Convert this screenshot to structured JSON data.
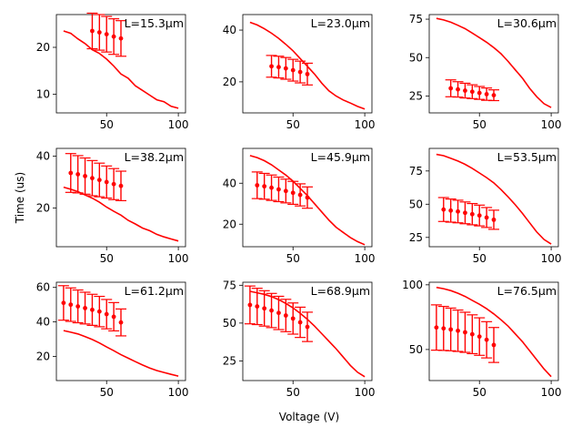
{
  "chart_data": {
    "type": "line",
    "layout": "3x3 grid of subplots",
    "xlabel": "Voltage (V)",
    "ylabel": "Time (us)",
    "line_color": "#ff0000",
    "panels": [
      {
        "label": "L=15.3μm",
        "xlim": [
          15,
          105
        ],
        "ylim": [
          6,
          27
        ],
        "xticks": [
          50,
          100
        ],
        "yticks": [
          10,
          20
        ],
        "curve": {
          "x": [
            20,
            25,
            30,
            35,
            40,
            45,
            50,
            55,
            60,
            65,
            70,
            75,
            80,
            85,
            90,
            95,
            100
          ],
          "y": [
            23.5,
            23.0,
            21.8,
            20.8,
            19.5,
            18.7,
            17.5,
            16.0,
            14.3,
            13.4,
            11.8,
            10.8,
            9.8,
            8.8,
            8.4,
            7.4,
            7.0
          ]
        },
        "errorbars": {
          "x": [
            40,
            45,
            50,
            55,
            60
          ],
          "y": [
            23.5,
            23.2,
            22.8,
            22.3,
            21.9
          ],
          "err": [
            3.8,
            3.8,
            3.8,
            3.8,
            3.8
          ]
        }
      },
      {
        "label": "L=23.0μm",
        "xlim": [
          15,
          105
        ],
        "ylim": [
          8,
          46
        ],
        "xticks": [
          50,
          100
        ],
        "yticks": [
          20,
          40
        ],
        "curve": {
          "x": [
            20,
            25,
            30,
            35,
            40,
            45,
            50,
            55,
            60,
            65,
            70,
            75,
            80,
            85,
            90,
            95,
            100
          ],
          "y": [
            43,
            42,
            40.5,
            38.8,
            36.8,
            34.5,
            32,
            29,
            26,
            23,
            19.5,
            16.5,
            14.5,
            13,
            11.8,
            10.5,
            9.5
          ]
        },
        "errorbars": {
          "x": [
            35,
            40,
            45,
            50,
            55,
            60
          ],
          "y": [
            26.0,
            25.7,
            25.2,
            24.5,
            23.8,
            23.0
          ],
          "err": [
            4.2,
            4.2,
            4.2,
            4.2,
            4.2,
            4.2
          ]
        }
      },
      {
        "label": "L=30.6μm",
        "xlim": [
          15,
          105
        ],
        "ylim": [
          14,
          78
        ],
        "xticks": [
          50,
          100
        ],
        "yticks": [
          25,
          50,
          75
        ],
        "curve": {
          "x": [
            20,
            25,
            30,
            35,
            40,
            45,
            50,
            55,
            60,
            65,
            70,
            75,
            80,
            85,
            90,
            95,
            100
          ],
          "y": [
            75.5,
            74.5,
            73,
            71,
            68.8,
            66,
            63,
            60,
            56.5,
            52.5,
            47.5,
            42,
            36.5,
            30,
            24.5,
            20,
            17.5
          ]
        },
        "errorbars": {
          "x": [
            30,
            35,
            40,
            45,
            50,
            55,
            60
          ],
          "y": [
            30.0,
            29.3,
            28.5,
            27.8,
            27.0,
            26.2,
            25.5
          ],
          "err": [
            5.5,
            5.0,
            4.8,
            4.5,
            4.2,
            4.0,
            3.5
          ]
        }
      },
      {
        "label": "L=38.2μm",
        "xlim": [
          15,
          105
        ],
        "ylim": [
          5,
          43
        ],
        "xticks": [
          50,
          100
        ],
        "yticks": [
          20,
          40
        ],
        "curve": {
          "x": [
            20,
            25,
            30,
            35,
            40,
            45,
            50,
            55,
            60,
            65,
            70,
            75,
            80,
            85,
            90,
            95,
            100
          ],
          "y": [
            28,
            27.2,
            26.3,
            25,
            23.8,
            22.2,
            20.3,
            18.7,
            17.2,
            15.2,
            13.8,
            12.2,
            11.2,
            9.8,
            8.8,
            8.0,
            7.2
          ]
        },
        "errorbars": {
          "x": [
            25,
            30,
            35,
            40,
            45,
            50,
            55,
            60
          ],
          "y": [
            33.5,
            33.0,
            32.3,
            31.5,
            30.8,
            30.0,
            29.2,
            28.5
          ],
          "err": [
            7.5,
            7.2,
            7.0,
            6.8,
            6.5,
            6.2,
            6.0,
            5.7
          ]
        }
      },
      {
        "label": "L=45.9μm",
        "xlim": [
          15,
          105
        ],
        "ylim": [
          9,
          57
        ],
        "xticks": [
          50,
          100
        ],
        "yticks": [
          20,
          40
        ],
        "curve": {
          "x": [
            20,
            25,
            30,
            35,
            40,
            45,
            50,
            55,
            60,
            65,
            70,
            75,
            80,
            85,
            90,
            95,
            100
          ],
          "y": [
            53.5,
            52.5,
            51,
            49,
            46.5,
            44,
            41,
            37.5,
            34,
            30,
            26,
            22,
            18.5,
            16,
            13.5,
            11.5,
            10
          ]
        },
        "errorbars": {
          "x": [
            25,
            30,
            35,
            40,
            45,
            50,
            55,
            60
          ],
          "y": [
            39.0,
            38.5,
            37.8,
            37.0,
            36.2,
            35.3,
            34.3,
            33.0
          ],
          "err": [
            6.5,
            6.3,
            6.2,
            6.0,
            5.8,
            5.6,
            5.4,
            5.2
          ]
        }
      },
      {
        "label": "L=53.5μm",
        "xlim": [
          15,
          105
        ],
        "ylim": [
          18,
          92
        ],
        "xticks": [
          50,
          100
        ],
        "yticks": [
          25,
          50,
          75
        ],
        "curve": {
          "x": [
            20,
            25,
            30,
            35,
            40,
            45,
            50,
            55,
            60,
            65,
            70,
            75,
            80,
            85,
            90,
            95,
            100
          ],
          "y": [
            87.5,
            86.5,
            84.5,
            82.5,
            80,
            77,
            73.5,
            70,
            66,
            61,
            55.5,
            49.5,
            43,
            36,
            29,
            23.5,
            20
          ]
        },
        "errorbars": {
          "x": [
            25,
            30,
            35,
            40,
            45,
            50,
            55,
            60
          ],
          "y": [
            46.0,
            45.2,
            44.5,
            43.5,
            42.5,
            41.5,
            40.0,
            38.3
          ],
          "err": [
            9.0,
            8.7,
            8.5,
            8.2,
            8.0,
            7.8,
            7.5,
            7.2
          ]
        }
      },
      {
        "label": "L=61.2μm",
        "xlim": [
          15,
          105
        ],
        "ylim": [
          6,
          63
        ],
        "xticks": [
          50,
          100
        ],
        "yticks": [
          20,
          40,
          60
        ],
        "curve": {
          "x": [
            20,
            25,
            30,
            35,
            40,
            45,
            50,
            55,
            60,
            65,
            70,
            75,
            80,
            85,
            90,
            95,
            100
          ],
          "y": [
            35,
            34,
            33,
            31.5,
            29.8,
            27.8,
            25.5,
            23.3,
            21,
            19,
            17,
            15,
            13.3,
            11.8,
            10.7,
            9.6,
            8.6
          ]
        },
        "errorbars": {
          "x": [
            20,
            25,
            30,
            35,
            40,
            45,
            50,
            55,
            60
          ],
          "y": [
            51.0,
            50.0,
            49.0,
            48.0,
            47.0,
            46.0,
            44.5,
            43.0,
            39.7
          ],
          "err": [
            10.0,
            9.7,
            9.5,
            9.2,
            9.0,
            8.8,
            8.5,
            8.2,
            7.8
          ]
        }
      },
      {
        "label": "L=68.9μm",
        "xlim": [
          15,
          105
        ],
        "ylim": [
          12,
          77
        ],
        "xticks": [
          50,
          100
        ],
        "yticks": [
          25,
          50,
          75
        ],
        "curve": {
          "x": [
            20,
            25,
            30,
            35,
            40,
            45,
            50,
            55,
            60,
            65,
            70,
            75,
            80,
            85,
            90,
            95,
            100
          ],
          "y": [
            71,
            70,
            69,
            67.5,
            65.5,
            63,
            60,
            56.5,
            52.5,
            48,
            43,
            38,
            33,
            27.5,
            22,
            17.5,
            14.5
          ]
        },
        "errorbars": {
          "x": [
            20,
            25,
            30,
            35,
            40,
            45,
            50,
            55,
            60
          ],
          "y": [
            62.0,
            61.0,
            59.7,
            58.3,
            56.7,
            55.0,
            53.0,
            50.5,
            47.5
          ],
          "err": [
            12.5,
            12.0,
            11.7,
            11.3,
            11.0,
            10.7,
            10.3,
            10.0,
            9.7
          ]
        }
      },
      {
        "label": "L=76.5μm",
        "xlim": [
          15,
          105
        ],
        "ylim": [
          26,
          102
        ],
        "xticks": [
          50,
          100
        ],
        "yticks": [
          50,
          100
        ],
        "curve": {
          "x": [
            20,
            25,
            30,
            35,
            40,
            45,
            50,
            55,
            60,
            65,
            70,
            75,
            80,
            85,
            90,
            95,
            100
          ],
          "y": [
            98,
            97,
            95.5,
            93.5,
            91,
            88,
            85,
            81.5,
            77.5,
            73,
            68,
            62,
            56,
            49,
            42,
            35,
            29
          ]
        },
        "errorbars": {
          "x": [
            20,
            25,
            30,
            35,
            40,
            45,
            50,
            55,
            60
          ],
          "y": [
            67.0,
            66.3,
            65.5,
            64.5,
            63.3,
            61.8,
            60.0,
            57.5,
            53.5
          ],
          "err": [
            17.5,
            17.0,
            16.5,
            16.0,
            15.5,
            15.0,
            14.5,
            14.0,
            13.5
          ]
        }
      }
    ]
  }
}
